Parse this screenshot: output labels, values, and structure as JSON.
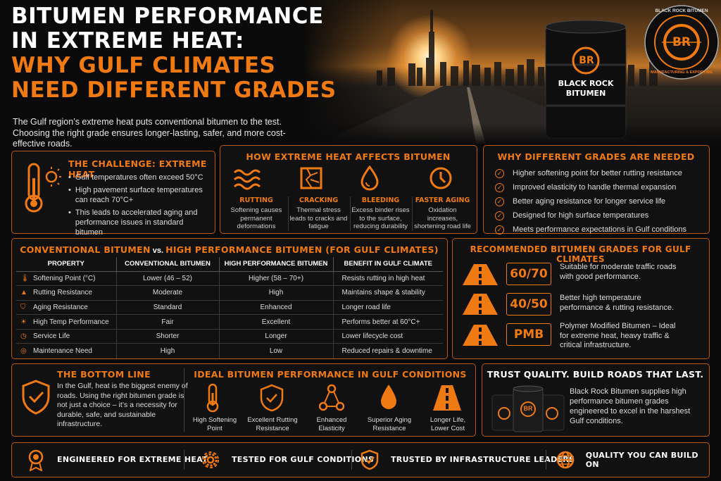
{
  "title": {
    "line1": "BITUMEN PERFORMANCE",
    "line2": "IN EXTREME HEAT:",
    "line3": "WHY GULF CLIMATES",
    "line4": "NEED DIFFERENT GRADES"
  },
  "intro": "The Gulf region’s extreme heat puts conventional bitumen to the test. Choosing the right grade ensures longer-lasting, safer, and more cost-effective roads.",
  "brand": {
    "barrel_logo": "BR",
    "barrel_line1": "BLACK ROCK",
    "barrel_line2": "BITUMEN",
    "seal_top": "BLACK ROCK BITUMEN",
    "seal_bottom": "MANUFACTURING & EXPORTING",
    "seal_logo": "BR"
  },
  "colors": {
    "accent": "#f07a12",
    "background": "#0a0a0a",
    "card_border": "#b85a12",
    "text": "#ffffff"
  },
  "challenge": {
    "heading": "THE CHALLENGE: EXTREME HEAT",
    "icon": "thermometer-sun-icon",
    "items": [
      "Gulf temperatures often exceed 50°C",
      "High pavement surface temperatures can reach 70°C+",
      "This leads to accelerated aging and performance issues in standard bitumen"
    ]
  },
  "effects": {
    "heading": "HOW EXTREME HEAT AFFECTS BITUMEN",
    "items": [
      {
        "icon": "waves-icon",
        "label": "RUTTING",
        "desc": "Softening causes permanent deformations"
      },
      {
        "icon": "cracked-surface-icon",
        "label": "CRACKING",
        "desc": "Thermal stress leads to cracks and fatigue"
      },
      {
        "icon": "drop-icon",
        "label": "BLEEDING",
        "desc": "Excess binder rises to the surface, reducing durability"
      },
      {
        "icon": "clock-icon",
        "label": "FASTER AGING",
        "desc": "Oxidation increases, shortening road life"
      }
    ]
  },
  "why": {
    "heading": "WHY DIFFERENT GRADES ARE NEEDED",
    "items": [
      "Higher softening point for better rutting resistance",
      "Improved elasticity to handle thermal expansion",
      "Better aging resistance for longer service life",
      "Designed for high surface temperatures",
      "Meets performance expectations in Gulf conditions"
    ]
  },
  "comparison": {
    "heading_a": "CONVENTIONAL BITUMEN",
    "heading_vs": " vs. ",
    "heading_b": "HIGH PERFORMANCE BITUMEN (FOR GULF CLIMATES)",
    "columns": [
      "PROPERTY",
      "CONVENTIONAL BITUMEN",
      "HIGH PERFORMANCE BITUMEN",
      "BENEFIT IN GULF CLIMATE"
    ],
    "rows": [
      {
        "icon": "thermometer-icon",
        "property": "Softening Point (°C)",
        "conventional": "Lower (46 – 52)",
        "high": "Higher (58 – 70+)",
        "benefit": "Resists rutting in high heat"
      },
      {
        "icon": "road-warning-icon",
        "property": "Rutting Resistance",
        "conventional": "Moderate",
        "high": "High",
        "benefit": "Maintains shape & stability"
      },
      {
        "icon": "shield-icon",
        "property": "Aging Resistance",
        "conventional": "Standard",
        "high": "Enhanced",
        "benefit": "Longer road life"
      },
      {
        "icon": "sun-icon",
        "property": "High Temp Performance",
        "conventional": "Fair",
        "high": "Excellent",
        "benefit": "Performs better at 60°C+"
      },
      {
        "icon": "clock-icon",
        "property": "Service Life",
        "conventional": "Shorter",
        "high": "Longer",
        "benefit": "Lower lifecycle cost"
      },
      {
        "icon": "coins-icon",
        "property": "Maintenance Need",
        "conventional": "High",
        "high": "Low",
        "benefit": "Reduced repairs & downtime"
      }
    ]
  },
  "grades": {
    "heading": "RECOMMENDED BITUMEN GRADES FOR GULF CLIMATES",
    "items": [
      {
        "icon": "road-icon",
        "grade": "60/70",
        "desc": "Suitable for moderate traffic roads with good performance."
      },
      {
        "icon": "road-icon",
        "grade": "40/50",
        "desc": "Better high temperature performance & rutting resistance."
      },
      {
        "icon": "road-icon",
        "grade": "PMB",
        "desc": "Polymer Modified Bitumen – Ideal for extreme heat, heavy traffic & critical infrastructure."
      }
    ]
  },
  "bottom": {
    "heading": "THE BOTTOM LINE",
    "icon": "shield-check-icon",
    "text": "In the Gulf, heat is the biggest enemy of roads. Using the right bitumen grade is not just a choice – it’s a necessity for durable, safe, and sustainable infrastructure."
  },
  "ideal": {
    "heading": "IDEAL BITUMEN PERFORMANCE IN GULF CONDITIONS",
    "items": [
      {
        "icon": "thermometer-icon",
        "label": "High Softening Point"
      },
      {
        "icon": "shield-check-icon",
        "label": "Excellent Rutting Resistance"
      },
      {
        "icon": "network-icon",
        "label": "Enhanced Elasticity"
      },
      {
        "icon": "drop-icon",
        "label": "Superior Aging Resistance"
      },
      {
        "icon": "road-icon",
        "label": "Longer Life, Lower Cost"
      }
    ]
  },
  "trust": {
    "heading": "TRUST QUALITY. BUILD ROADS THAT LAST.",
    "text": "Black Rock Bitumen supplies high performance bitumen grades engineered to excel in the harshest Gulf conditions.",
    "barrel_logo": "BR"
  },
  "footer": [
    {
      "icon": "medal-icon",
      "label": "ENGINEERED FOR EXTREME HEAT"
    },
    {
      "icon": "gear-icon",
      "label": "TESTED FOR GULF CONDITIONS"
    },
    {
      "icon": "shield-check-icon",
      "label": "TRUSTED BY INFRASTRUCTURE LEADERS"
    },
    {
      "icon": "globe-icon",
      "label": "QUALITY YOU CAN BUILD ON"
    }
  ]
}
